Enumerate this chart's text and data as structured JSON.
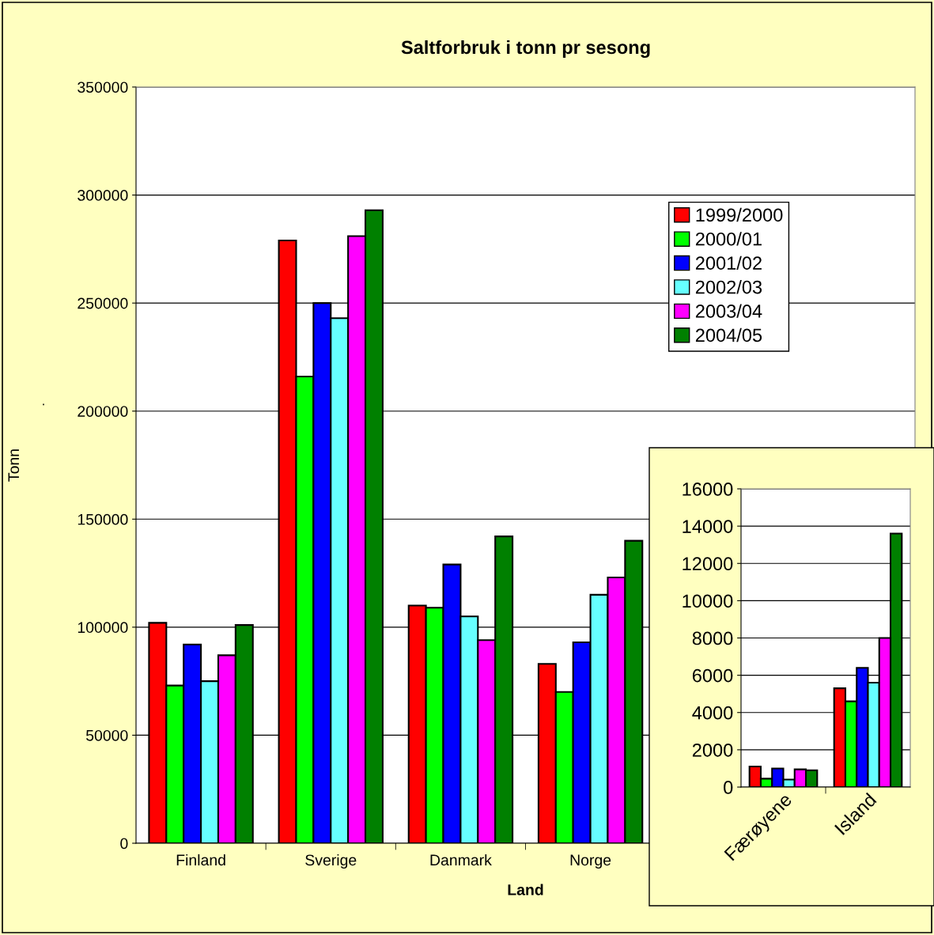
{
  "chart_data": [
    {
      "type": "bar",
      "title": "Saltforbruk i tonn pr sesong",
      "xlabel": "Land",
      "ylabel": "Tonn",
      "annotations": [
        "."
      ],
      "categories": [
        "Finland",
        "Sverige",
        "Danmark",
        "Norge",
        null,
        null
      ],
      "series": [
        {
          "name": "1999/2000",
          "color": "#ff0000",
          "values": [
            102000,
            279000,
            110000,
            83000,
            null,
            null
          ]
        },
        {
          "name": "2000/01",
          "color": "#00ff00",
          "values": [
            73000,
            216000,
            109000,
            70000,
            null,
            null
          ]
        },
        {
          "name": "2001/02",
          "color": "#0000ff",
          "values": [
            92000,
            250000,
            129000,
            93000,
            null,
            null
          ]
        },
        {
          "name": "2002/03",
          "color": "#66ffff",
          "values": [
            75000,
            243000,
            105000,
            115000,
            null,
            null
          ]
        },
        {
          "name": "2003/04",
          "color": "#ff00ff",
          "values": [
            87000,
            281000,
            94000,
            123000,
            null,
            null
          ]
        },
        {
          "name": "2004/05",
          "color": "#008000",
          "values": [
            101000,
            293000,
            142000,
            140000,
            null,
            null
          ]
        }
      ],
      "ylim": [
        0,
        350000
      ],
      "yticks": [
        0,
        50000,
        100000,
        150000,
        200000,
        250000,
        300000,
        350000
      ],
      "grid": "y",
      "legend": "top right"
    },
    {
      "type": "bar",
      "categories": [
        "Færøyene",
        "Island"
      ],
      "series": [
        {
          "color": "#ff0000",
          "values": [
            1100,
            5300
          ]
        },
        {
          "color": "#00ff00",
          "values": [
            450,
            4600
          ]
        },
        {
          "color": "#0000ff",
          "values": [
            1000,
            6400
          ]
        },
        {
          "color": "#66ffff",
          "values": [
            400,
            5600
          ]
        },
        {
          "color": "#ff00ff",
          "values": [
            950,
            8000
          ]
        },
        {
          "color": "#008000",
          "values": [
            900,
            13600
          ]
        }
      ],
      "ylim": [
        0,
        16000
      ],
      "yticks": [
        0,
        2000,
        4000,
        6000,
        8000,
        10000,
        12000,
        14000,
        16000
      ],
      "grid": "y"
    }
  ]
}
